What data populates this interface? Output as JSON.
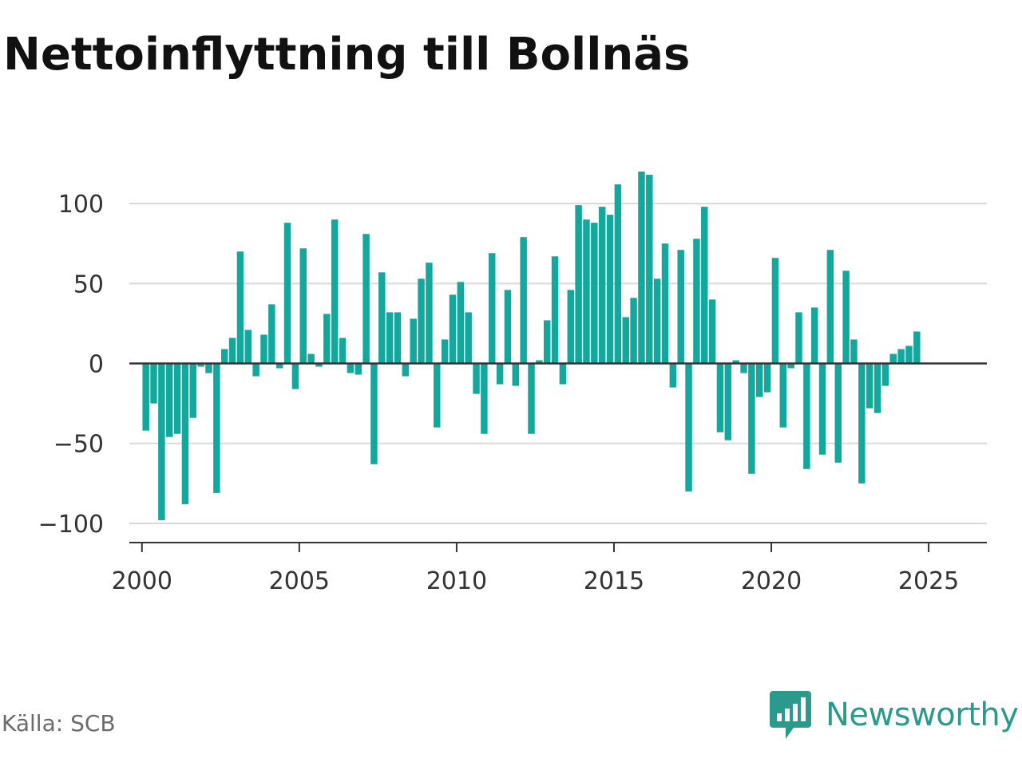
{
  "title": "Nettoinflyttning till Bollnäs",
  "source": "Källa: SCB",
  "brand": {
    "name": "Newsworthy",
    "icon": "bar-chart-speech-bubble-icon",
    "color": "#2a9a8c"
  },
  "chart_data": {
    "type": "bar",
    "title": "Nettoinflyttning till Bollnäs",
    "xlabel": "",
    "ylabel": "",
    "bar_color": "#13a89e",
    "grid": true,
    "ylim": [
      -112,
      125
    ],
    "yticks": [
      100,
      50,
      0,
      -50,
      -100
    ],
    "ytick_labels": [
      "100",
      "50",
      "0",
      "−50",
      "−100"
    ],
    "xlim": [
      1999.6,
      2026.85
    ],
    "xticks": [
      2000,
      2005,
      2010,
      2015,
      2020,
      2025
    ],
    "xtick_labels": [
      "2000",
      "2005",
      "2010",
      "2015",
      "2020",
      "2025"
    ],
    "period": "quarter",
    "start": "2000-Q1",
    "values": [
      -42,
      -25,
      -98,
      -46,
      -44,
      -88,
      -34,
      -2,
      -6,
      -81,
      9,
      16,
      70,
      21,
      -8,
      18,
      37,
      -3,
      88,
      -16,
      72,
      6,
      -2,
      31,
      90,
      16,
      -6,
      -7,
      81,
      -63,
      57,
      32,
      32,
      -8,
      28,
      53,
      63,
      -40,
      15,
      43,
      51,
      32,
      -19,
      -44,
      69,
      -13,
      46,
      -14,
      79,
      -44,
      2,
      27,
      67,
      -13,
      46,
      99,
      90,
      88,
      98,
      93,
      112,
      29,
      41,
      120,
      118,
      53,
      75,
      -15,
      71,
      -80,
      78,
      98,
      40,
      -43,
      -48,
      2,
      -6,
      -69,
      -21,
      -18,
      66,
      -40,
      -3,
      32,
      -66,
      35,
      -57,
      71,
      -62,
      58,
      15,
      -75,
      -28,
      -31,
      -14,
      6,
      9,
      11,
      20
    ]
  }
}
